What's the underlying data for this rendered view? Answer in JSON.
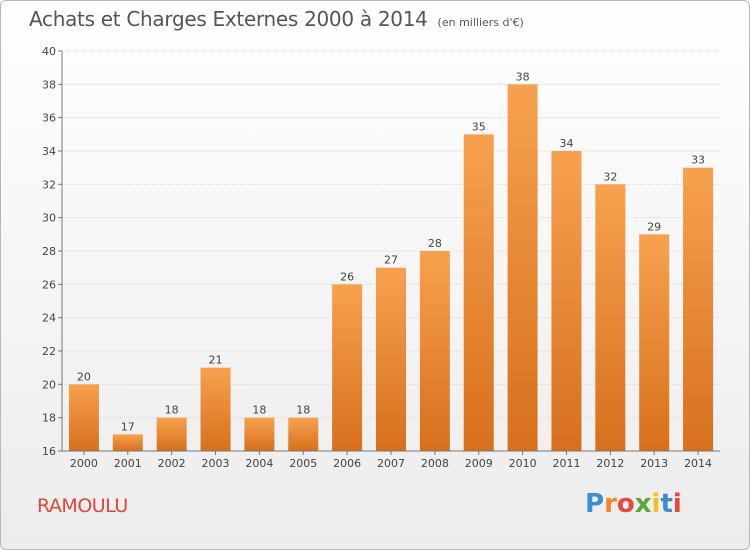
{
  "header": {
    "title": "Achats et Charges Externes 2000 à 2014",
    "subtitle": "(en milliers d'€)"
  },
  "footer": {
    "commune": "RAMOULU",
    "logo_letters": [
      "P",
      "r",
      "o",
      "x",
      "i",
      "t",
      "i"
    ],
    "logo_colors": [
      "#3a8fd0",
      "#f08a24",
      "#e8453c",
      "#58a832",
      "#f4c21f",
      "#3a8fd0",
      "#e8453c"
    ]
  },
  "chart_data": {
    "type": "bar",
    "title": "Achats et Charges Externes 2000 à 2014",
    "subtitle": "(en milliers d'€)",
    "xlabel": "",
    "ylabel": "",
    "categories": [
      "2000",
      "2001",
      "2002",
      "2003",
      "2004",
      "2005",
      "2006",
      "2007",
      "2008",
      "2009",
      "2010",
      "2011",
      "2012",
      "2013",
      "2014"
    ],
    "values": [
      20,
      17,
      18,
      21,
      18,
      18,
      26,
      27,
      28,
      35,
      38,
      34,
      32,
      29,
      33
    ],
    "ylim": [
      16,
      40
    ],
    "yticks": [
      16,
      18,
      20,
      22,
      24,
      26,
      28,
      30,
      32,
      34,
      36,
      38,
      40
    ],
    "grid": true,
    "bar_color_top": "#f7a14f",
    "bar_color_bottom": "#d7701c"
  }
}
